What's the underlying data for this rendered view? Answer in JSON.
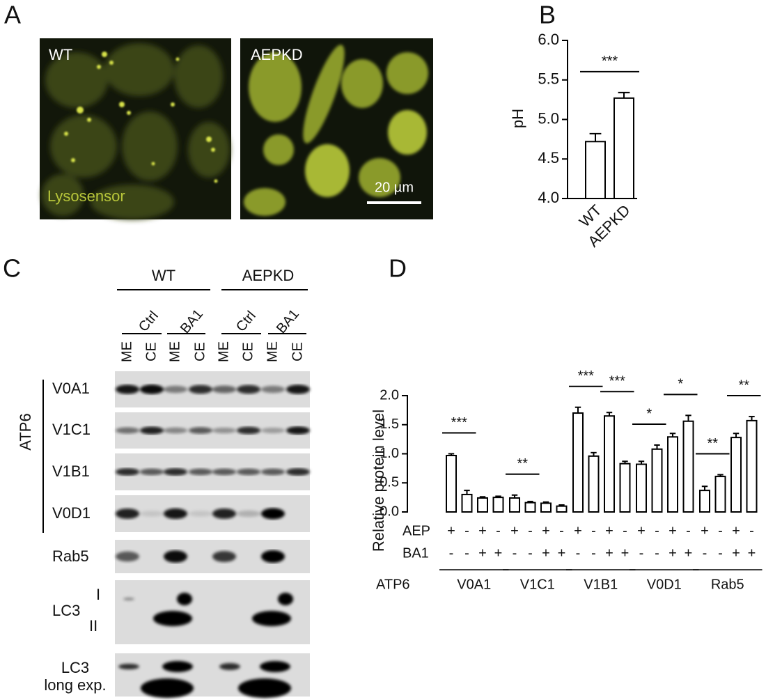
{
  "panel_labels": [
    "A",
    "B",
    "C",
    "D"
  ],
  "panel_a": {
    "images": [
      {
        "label": "WT",
        "stain": "Lysosensor"
      },
      {
        "label": "AEPKD",
        "scale_bar": "20 µm"
      }
    ]
  },
  "panel_c": {
    "groups": [
      "WT",
      "AEPKD"
    ],
    "treatments": [
      "Ctrl",
      "BA1",
      "Ctrl",
      "BA1"
    ],
    "fractions": [
      "ME",
      "CE",
      "ME",
      "CE",
      "ME",
      "CE",
      "ME",
      "CE"
    ],
    "bracket_label": "ATP6",
    "rows": [
      {
        "label": "V0A1"
      },
      {
        "label": "V1C1"
      },
      {
        "label": "V1B1"
      },
      {
        "label": "V0D1"
      },
      {
        "label": "Rab5"
      },
      {
        "label": "LC3",
        "bands": [
          "I",
          "II"
        ]
      },
      {
        "label_lines": [
          "LC3",
          "long exp."
        ]
      }
    ]
  },
  "chart_data": [
    {
      "type": "bar",
      "ylabel": "pH",
      "categories": [
        "WT",
        "AEPKD"
      ],
      "values": [
        4.72,
        5.27
      ],
      "errors": [
        0.1,
        0.07
      ],
      "color": "#ffffff",
      "edgecolor": "#000000",
      "ylim": [
        4.0,
        6.0
      ],
      "yticks": [
        {
          "value": 4,
          "label": "4.0"
        },
        {
          "value": 4.5,
          "label": "4.5"
        },
        {
          "value": 5,
          "label": "5.0"
        },
        {
          "value": 5.5,
          "label": "5.5"
        },
        {
          "value": 6,
          "label": "6.0"
        }
      ],
      "annotations": [
        {
          "label": "***",
          "bars": [
            0,
            1
          ]
        }
      ]
    },
    {
      "type": "bar",
      "ylabel": "Relative protein level",
      "values": [
        0.97,
        0.3,
        0.24,
        0.25,
        0.24,
        0.16,
        0.15,
        0.1,
        1.7,
        0.96,
        1.65,
        0.83,
        0.82,
        1.08,
        1.29,
        1.56,
        0.37,
        0.61,
        1.28,
        1.57
      ],
      "errors": [
        0.03,
        0.07,
        0.02,
        0.02,
        0.05,
        0.02,
        0.02,
        0.02,
        0.1,
        0.06,
        0.06,
        0.04,
        0.05,
        0.07,
        0.06,
        0.1,
        0.07,
        0.03,
        0.07,
        0.07
      ],
      "color": "#ffffff",
      "edgecolor": "#000000",
      "ylim": [
        0,
        2.0
      ],
      "yticks": [
        {
          "value": 0,
          "label": "0.0"
        },
        {
          "value": 0.5,
          "label": "0.5"
        },
        {
          "value": 1,
          "label": "1.0"
        },
        {
          "value": 1.5,
          "label": "1.5"
        },
        {
          "value": 2,
          "label": "2.0"
        }
      ],
      "conditions": [
        {
          "name": "AEP",
          "signs": [
            "+",
            "-",
            "+",
            "-",
            "+",
            "-",
            "+",
            "-",
            "+",
            "-",
            "+",
            "-",
            "+",
            "-",
            "+",
            "-",
            "+",
            "-",
            "+",
            "-"
          ]
        },
        {
          "name": "BA1",
          "signs": [
            "-",
            "-",
            "+",
            "+",
            "-",
            "-",
            "+",
            "+",
            "-",
            "-",
            "+",
            "+",
            "-",
            "-",
            "+",
            "+",
            "-",
            "-",
            "+",
            "+"
          ]
        }
      ],
      "group_title": "ATP6",
      "groups": [
        "V0A1",
        "V1C1",
        "V1B1",
        "V0D1",
        "Rab5"
      ],
      "annotations": [
        {
          "label": "***",
          "bars": [
            0,
            1
          ]
        },
        {
          "label": "**",
          "bars": [
            4,
            5
          ]
        },
        {
          "label": "***",
          "bars": [
            8,
            9
          ]
        },
        {
          "label": "***",
          "bars": [
            10,
            11
          ]
        },
        {
          "label": "*",
          "bars": [
            12,
            13
          ]
        },
        {
          "label": "*",
          "bars": [
            14,
            15
          ]
        },
        {
          "label": "**",
          "bars": [
            16,
            17
          ]
        },
        {
          "label": "**",
          "bars": [
            18,
            19
          ]
        }
      ]
    }
  ]
}
